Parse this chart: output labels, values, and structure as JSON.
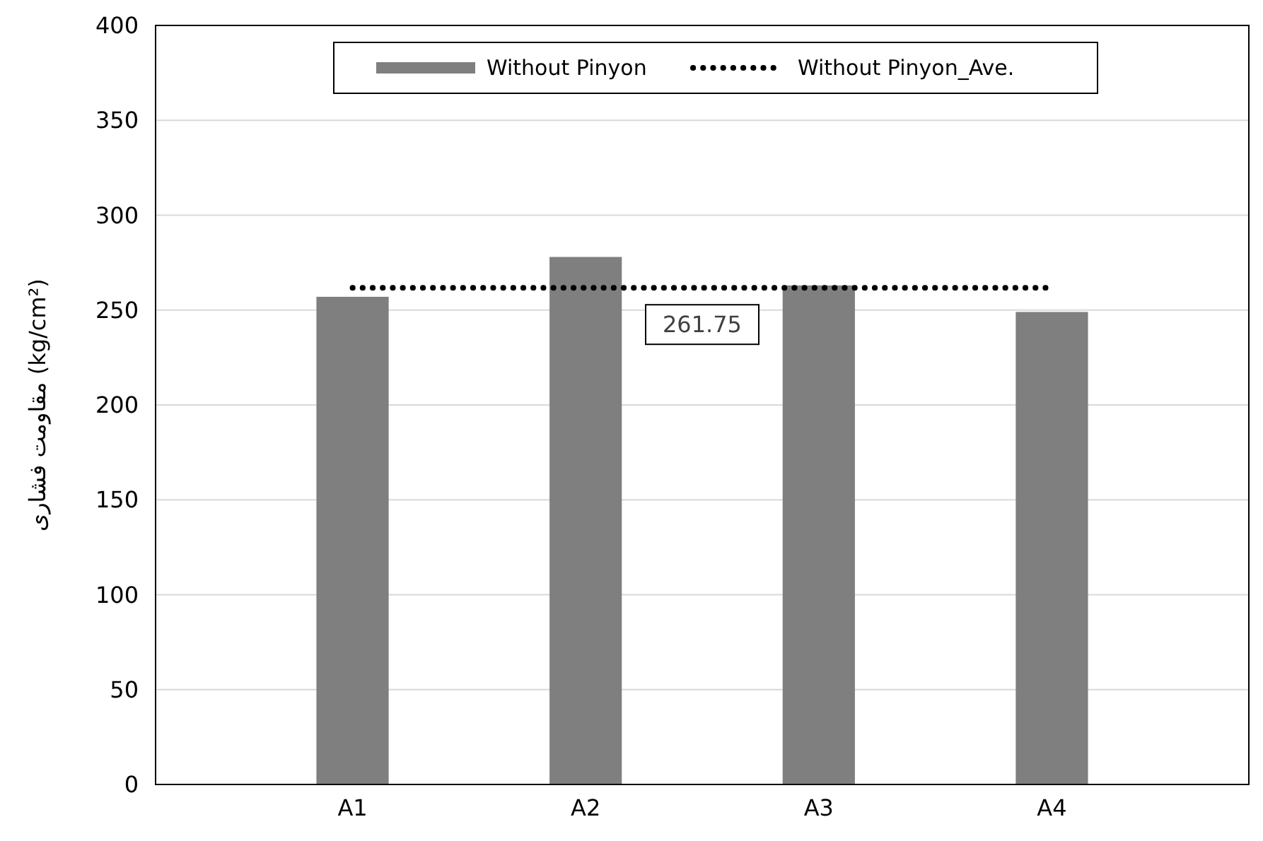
{
  "chart_data": {
    "type": "bar",
    "ylabel": "مقاومت فشاری (kg/cm²)",
    "categories": [
      "A1",
      "A2",
      "A3",
      "A4"
    ],
    "series": [
      {
        "name": "Without Pinyon",
        "color": "#7f7f7f",
        "values": [
          257,
          278,
          263,
          249
        ]
      },
      {
        "name": "Without Pinyon_Ave.",
        "type": "line",
        "color": "#000000",
        "line_style": "dotted",
        "values": [
          261.75,
          261.75,
          261.75,
          261.75
        ]
      }
    ],
    "annotations": [
      {
        "text": "261.75",
        "y": 261.75
      }
    ],
    "ylim": [
      0,
      400
    ],
    "yticks": [
      0,
      50,
      100,
      150,
      200,
      250,
      300,
      350,
      400
    ],
    "grid": "y",
    "legend": "top"
  }
}
